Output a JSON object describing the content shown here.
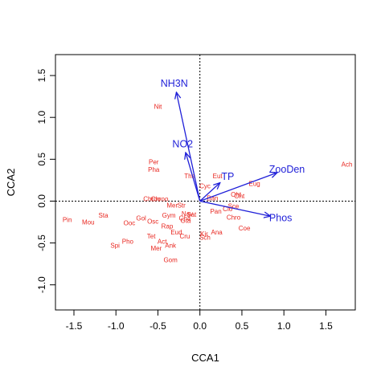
{
  "chart_data": {
    "type": "scatter",
    "xlabel": "CCA1",
    "ylabel": "CCA2",
    "xlim": [
      -1.72,
      1.85
    ],
    "ylim": [
      -1.3,
      1.75
    ],
    "x_ticks": [
      -1.5,
      -1.0,
      -0.5,
      0.0,
      0.5,
      1.0,
      1.5
    ],
    "y_ticks": [
      -1.0,
      -0.5,
      0.0,
      0.5,
      1.0,
      1.5
    ],
    "x_tick_labels": [
      "-1.5",
      "-1.0",
      "-0.5",
      "0.0",
      "0.5",
      "1.0",
      "1.5"
    ],
    "y_tick_labels": [
      "-1.0",
      "-0.5",
      "0.0",
      "0.5",
      "1.0",
      "1.5"
    ],
    "reference_lines": {
      "x": 0,
      "y": 0,
      "style": "dotted"
    },
    "label_color": "#e8261f",
    "arrow_color": "#1f1fd8",
    "series": [
      {
        "kind": "labels",
        "points": [
          {
            "label": "Nit",
            "x": -0.5,
            "y": 1.13
          },
          {
            "label": "Per",
            "x": -0.55,
            "y": 0.47
          },
          {
            "label": "Pha",
            "x": -0.55,
            "y": 0.38
          },
          {
            "label": "Ach",
            "x": 1.75,
            "y": 0.44
          },
          {
            "label": "Tha",
            "x": -0.12,
            "y": 0.3
          },
          {
            "label": "Eug",
            "x": 0.65,
            "y": 0.21
          },
          {
            "label": "Eut",
            "x": 0.21,
            "y": 0.3
          },
          {
            "label": "Cyc",
            "x": 0.06,
            "y": 0.18
          },
          {
            "label": "Chroo",
            "x": -0.57,
            "y": 0.03
          },
          {
            "label": "Chroo",
            "x": -0.48,
            "y": 0.03
          },
          {
            "label": "Oht",
            "x": 0.47,
            "y": 0.06
          },
          {
            "label": "Oht",
            "x": 0.43,
            "y": 0.08
          },
          {
            "label": "Ban",
            "x": 0.15,
            "y": 0.04
          },
          {
            "label": "Sce",
            "x": 0.4,
            "y": -0.06
          },
          {
            "label": "Clo",
            "x": 0.33,
            "y": -0.09
          },
          {
            "label": "Pan",
            "x": 0.19,
            "y": -0.12
          },
          {
            "label": "Chro",
            "x": 0.4,
            "y": -0.19
          },
          {
            "label": "Coe",
            "x": 0.53,
            "y": -0.32
          },
          {
            "label": "Ana",
            "x": 0.2,
            "y": -0.37
          },
          {
            "label": "Kir",
            "x": 0.05,
            "y": -0.39
          },
          {
            "label": "Sch",
            "x": 0.06,
            "y": -0.43
          },
          {
            "label": "Cru",
            "x": -0.18,
            "y": -0.42
          },
          {
            "label": "Mer",
            "x": -0.33,
            "y": -0.05
          },
          {
            "label": "Str",
            "x": -0.22,
            "y": -0.05
          },
          {
            "label": "Nav",
            "x": -0.15,
            "y": -0.15
          },
          {
            "label": "Cha",
            "x": -0.18,
            "y": -0.2
          },
          {
            "label": "Gta",
            "x": -0.17,
            "y": -0.23
          },
          {
            "label": "Sat",
            "x": -0.1,
            "y": -0.16
          },
          {
            "label": "Gym",
            "x": -0.37,
            "y": -0.17
          },
          {
            "label": "Osc",
            "x": -0.56,
            "y": -0.24
          },
          {
            "label": "Gol",
            "x": -0.7,
            "y": -0.2
          },
          {
            "label": "Ooc",
            "x": -0.84,
            "y": -0.26
          },
          {
            "label": "Rap",
            "x": -0.39,
            "y": -0.3
          },
          {
            "label": "Eud",
            "x": -0.28,
            "y": -0.37
          },
          {
            "label": "Tet",
            "x": -0.58,
            "y": -0.42
          },
          {
            "label": "Act",
            "x": -0.45,
            "y": -0.48
          },
          {
            "label": "Ank",
            "x": -0.35,
            "y": -0.53
          },
          {
            "label": "Mer",
            "x": -0.52,
            "y": -0.56
          },
          {
            "label": "Gom",
            "x": -0.35,
            "y": -0.7
          },
          {
            "label": "Sta",
            "x": -1.15,
            "y": -0.17
          },
          {
            "label": "Mou",
            "x": -1.33,
            "y": -0.25
          },
          {
            "label": "Pin",
            "x": -1.58,
            "y": -0.22
          },
          {
            "label": "Pho",
            "x": -0.86,
            "y": -0.48
          },
          {
            "label": "Spi",
            "x": -1.01,
            "y": -0.53
          }
        ]
      },
      {
        "kind": "arrows",
        "origin": [
          0,
          0
        ],
        "vectors": [
          {
            "label": "NH3N",
            "x": -0.28,
            "y": 1.3
          },
          {
            "label": "NO2",
            "x": -0.17,
            "y": 0.58
          },
          {
            "label": "TP",
            "x": 0.24,
            "y": 0.22
          },
          {
            "label": "ZooDen",
            "x": 0.92,
            "y": 0.34
          },
          {
            "label": "Phos",
            "x": 0.84,
            "y": -0.18
          }
        ]
      }
    ]
  }
}
